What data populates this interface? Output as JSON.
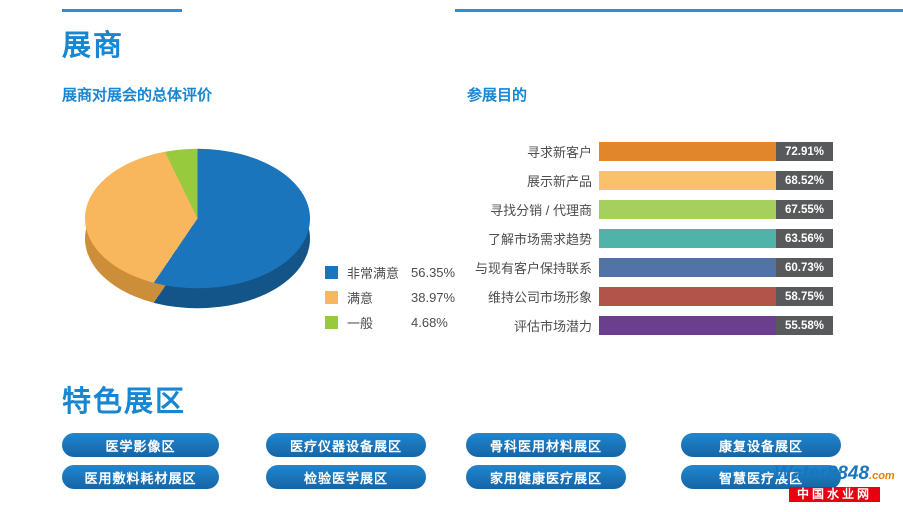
{
  "page": {
    "title": "展商"
  },
  "zones": {
    "title": "特色展区",
    "items": [
      "医学影像区",
      "医疗仪器设备展区",
      "骨科医用材料展区",
      "康复设备展区",
      "医用敷料耗材展区",
      "检验医学展区",
      "家用健康医疗展区",
      "智慧医疗展区"
    ]
  },
  "watermark": {
    "brand": "Water8848",
    "suffix": ".com",
    "badge": "中国水业网"
  },
  "chart_data": [
    {
      "type": "pie",
      "title": "展商对展会的总体评价",
      "legend_position": "right",
      "style": "3d",
      "slices": [
        {
          "label": "非常满意",
          "value": 56.35,
          "color": "#1b75bc",
          "side_color": "#14578c"
        },
        {
          "label": "满意",
          "value": 38.97,
          "color": "#f8b75c",
          "side_color": "#d1913b"
        },
        {
          "label": "一般",
          "value": 4.68,
          "color": "#97ca3d",
          "side_color": "#74a02c"
        }
      ]
    },
    {
      "type": "bar",
      "title": "参展目的",
      "orientation": "horizontal",
      "categories": [
        "寻求新客户",
        "展示新产品",
        "寻找分销 / 代理商",
        "了解市场需求趋势",
        "与现有客户保持联系",
        "维持公司市场形象",
        "评估市场潜力"
      ],
      "values": [
        72.91,
        68.52,
        67.55,
        63.56,
        60.73,
        58.75,
        55.58
      ],
      "value_format": "percent",
      "bar_colors": [
        "#e2862c",
        "#f9c16a",
        "#a5d05e",
        "#4fb3a9",
        "#5273a8",
        "#b2544a",
        "#6c3e8e"
      ],
      "value_box_color": "#58595b",
      "xlim": [
        0,
        100
      ],
      "grid": false
    }
  ]
}
